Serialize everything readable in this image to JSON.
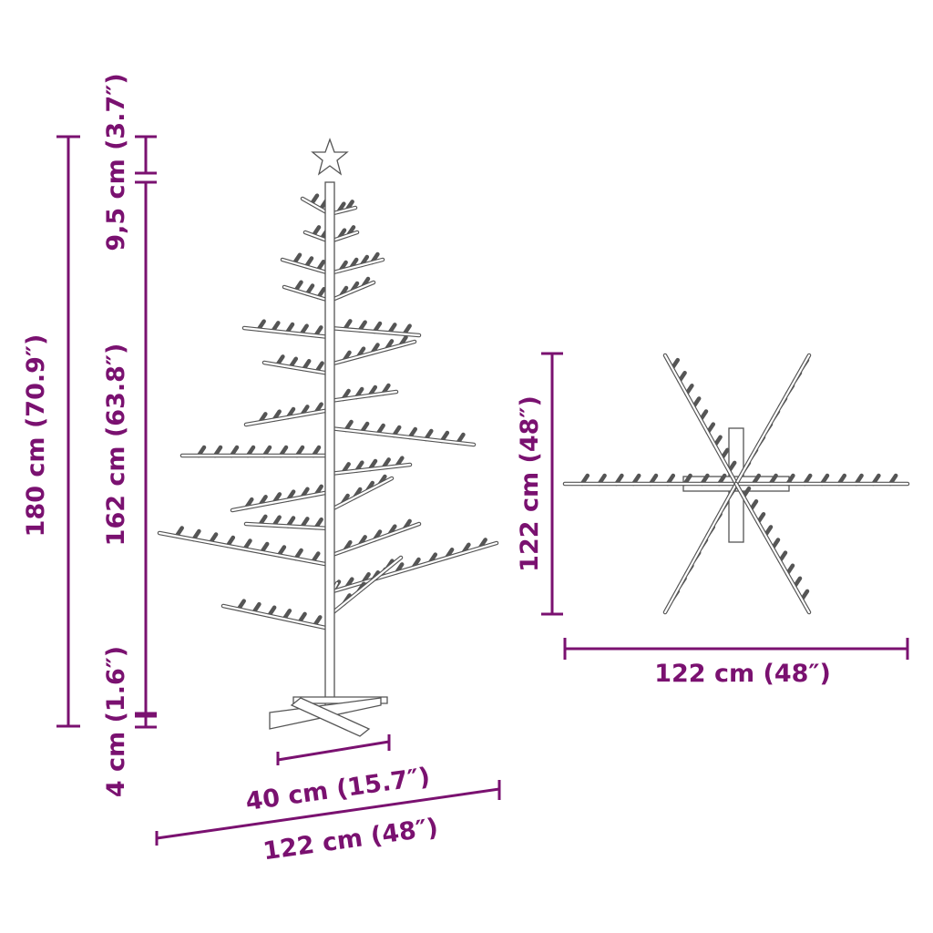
{
  "dimensions": {
    "total_height": "180 cm (70.9″)",
    "star_height": "9,5 cm (3.7″)",
    "tree_height": "162 cm (63.8″)",
    "base_height": "4 cm (1.6″)",
    "base_width": "40 cm (15.7″)",
    "tree_width": "122 cm (48″)",
    "top_depth": "122 cm (48″)",
    "top_width": "122 cm (48″)"
  },
  "colors": {
    "dimension": "#7a1170",
    "drawing": "#555555"
  }
}
